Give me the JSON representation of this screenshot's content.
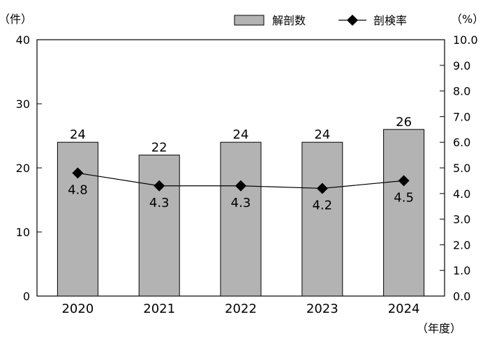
{
  "chart_data": {
    "type": "bar",
    "categories": [
      "2020",
      "2021",
      "2022",
      "2023",
      "2024"
    ],
    "series": [
      {
        "name": "解剖数",
        "type": "bar",
        "axis": "left",
        "values": [
          24,
          22,
          24,
          24,
          26
        ]
      },
      {
        "name": "剖検率",
        "type": "line",
        "axis": "right",
        "marker": "diamond",
        "values": [
          4.8,
          4.3,
          4.3,
          4.2,
          4.5
        ],
        "labels": [
          "4.8",
          "4.3",
          "4.3",
          "4.2",
          "4.5"
        ]
      }
    ],
    "y_left": {
      "label": "（件）",
      "min": 0,
      "max": 40,
      "ticks": [
        "0",
        "10",
        "20",
        "30",
        "40"
      ]
    },
    "y_right": {
      "label": "（%）",
      "min": 0,
      "max": 10,
      "ticks": [
        "0.0",
        "1.0",
        "2.0",
        "3.0",
        "4.0",
        "5.0",
        "6.0",
        "7.0",
        "8.0",
        "9.0",
        "10.0"
      ]
    },
    "xlabel": "（年度）",
    "legend_position": "top-right",
    "grid": false,
    "colors": {
      "bar_fill": "#b3b3b3",
      "bar_stroke": "#000000",
      "line": "#000000",
      "marker": "#000000"
    }
  }
}
